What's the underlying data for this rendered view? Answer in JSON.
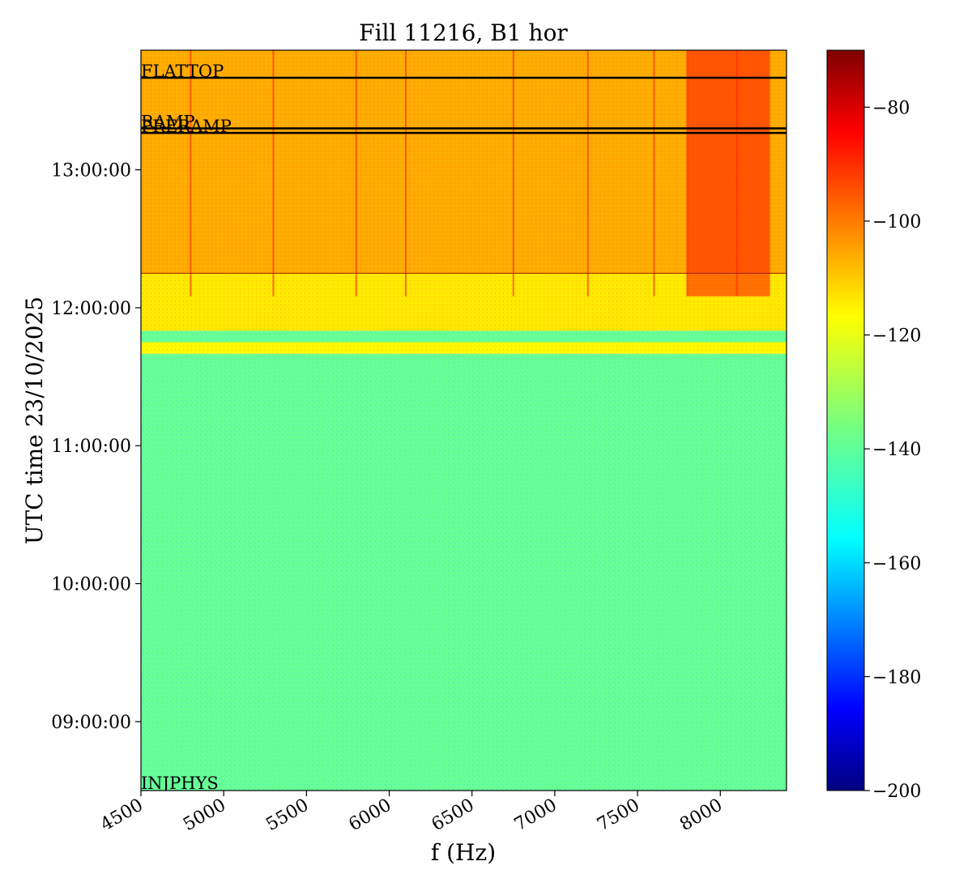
{
  "chart_data": {
    "type": "heatmap",
    "title": "Fill 11216, B1 hor",
    "xlabel": "f (Hz)",
    "ylabel": "UTC time 23/10/2025",
    "x_ticks": [
      "4500",
      "5000",
      "5500",
      "6000",
      "6500",
      "7000",
      "7500",
      "8000"
    ],
    "xlim": [
      4500,
      8400
    ],
    "y_ticks": [
      "09:00:00",
      "10:00:00",
      "11:00:00",
      "12:00:00",
      "13:00:00"
    ],
    "ylim": [
      "08:30:00",
      "13:52:00"
    ],
    "colorbar": {
      "ticks": [
        "−80",
        "−100",
        "−120",
        "−140",
        "−160",
        "−180",
        "−200"
      ],
      "range": [
        -200,
        -70
      ],
      "colormap": "jet"
    },
    "markers": [
      {
        "label": "INJPHYS",
        "time": "08:30:00",
        "line": false
      },
      {
        "label": "RAMP",
        "time": "13:18:00",
        "line": true
      },
      {
        "label": "PRERAMP",
        "time": "13:16:00",
        "line": true
      },
      {
        "label": "FLATTOP",
        "time": "13:40:00",
        "line": true
      }
    ],
    "regions": [
      {
        "from": "08:30:00",
        "to": "11:40:00",
        "level_db": -138,
        "note_color": "#3fe59e"
      },
      {
        "from": "11:40:00",
        "to": "11:45:00",
        "level_db": -118,
        "note_color": "#c8f040"
      },
      {
        "from": "11:45:00",
        "to": "11:50:00",
        "level_db": -138,
        "note_color": "#3fe59e"
      },
      {
        "from": "11:50:00",
        "to": "12:15:00",
        "level_db": -116,
        "note_color": "#d8f038"
      },
      {
        "from": "12:15:00",
        "to": "13:52:00",
        "level_db": -108,
        "note_color": "#f5b41c"
      }
    ],
    "hot_band": {
      "from_hz": 7800,
      "to_hz": 8300,
      "from": "12:05:00",
      "to": "13:52:00",
      "level_db": -88
    },
    "lines_hz": [
      4800,
      5300,
      5800,
      6100,
      6750,
      7200,
      7600,
      7800,
      8100
    ]
  }
}
